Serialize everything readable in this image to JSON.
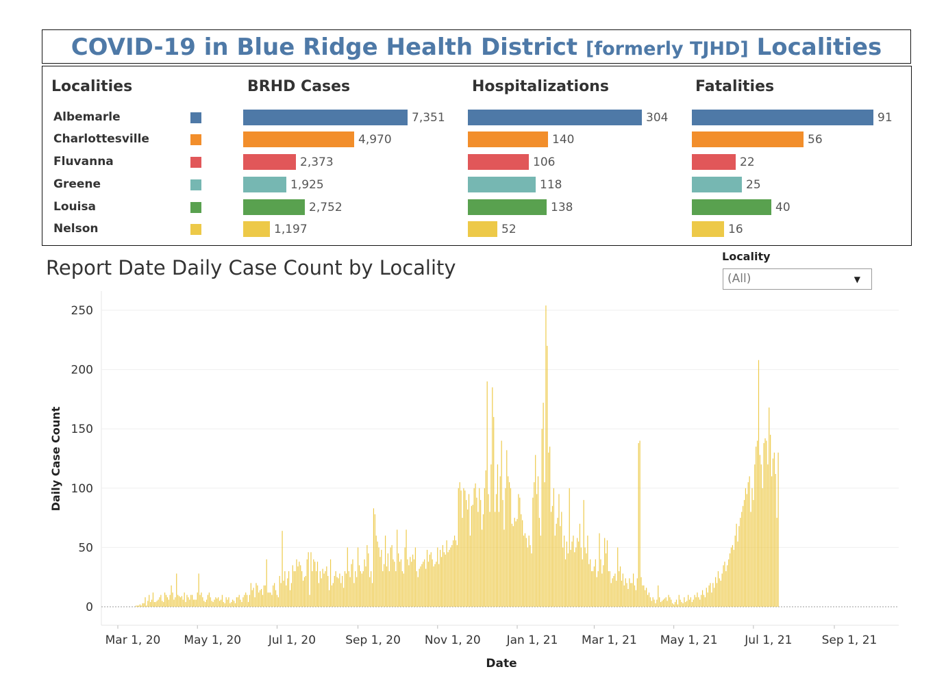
{
  "title": {
    "part1": "COVID-19 in Blue Ridge Health District ",
    "part2": "[formerly TJHD]",
    "part3": " Localities"
  },
  "summary": {
    "columns": {
      "localities": "Localities",
      "cases": "BRHD Cases",
      "hospitalizations": "Hospitalizations",
      "fatalities": "Fatalities"
    },
    "rows": [
      {
        "name": "Albemarle",
        "color": "#4e79a7",
        "cases": 7351,
        "cases_label": "7,351",
        "hosp": 304,
        "hosp_label": "304",
        "fatal": 91,
        "fatal_label": "91"
      },
      {
        "name": "Charlottesville",
        "color": "#f28e2b",
        "cases": 4970,
        "cases_label": "4,970",
        "hosp": 140,
        "hosp_label": "140",
        "fatal": 56,
        "fatal_label": "56"
      },
      {
        "name": "Fluvanna",
        "color": "#e15759",
        "cases": 2373,
        "cases_label": "2,373",
        "hosp": 106,
        "hosp_label": "106",
        "fatal": 22,
        "fatal_label": "22"
      },
      {
        "name": "Greene",
        "color": "#76b7b2",
        "cases": 1925,
        "cases_label": "1,925",
        "hosp": 118,
        "hosp_label": "118",
        "fatal": 25,
        "fatal_label": "25"
      },
      {
        "name": "Louisa",
        "color": "#59a14f",
        "cases": 2752,
        "cases_label": "2,752",
        "hosp": 138,
        "hosp_label": "138",
        "fatal": 40,
        "fatal_label": "40"
      },
      {
        "name": "Nelson",
        "color": "#edc948",
        "cases": 1197,
        "cases_label": "1,197",
        "hosp": 52,
        "hosp_label": "52",
        "fatal": 16,
        "fatal_label": "16"
      }
    ]
  },
  "daily": {
    "title": "Report Date Daily Case Count by Locality",
    "filter_label": "Locality",
    "filter_value": "(All)",
    "filter_arrow": "▼"
  },
  "chart_data": {
    "type": "bar",
    "color": "#edc948",
    "xlabel": "Date",
    "ylabel": "Daily Case Count",
    "ylim": [
      0,
      250
    ],
    "yticks": [
      0,
      50,
      100,
      150,
      200,
      250
    ],
    "xticks": [
      "Mar 1, 20",
      "May 1, 20",
      "Jul 1, 20",
      "Sep 1, 20",
      "Nov 1, 20",
      "Jan 1, 21",
      "Mar 1, 21",
      "May 1, 21",
      "Jul 1, 21",
      "Sep 1, 21"
    ],
    "grid": true,
    "series": [
      {
        "x_start": "2020-03-15",
        "values": [
          1,
          1,
          1,
          2,
          1,
          3,
          3,
          8,
          1,
          5,
          10,
          4,
          6,
          12,
          4,
          4,
          5,
          6,
          8,
          10,
          5,
          4,
          12,
          10,
          8,
          6,
          10,
          18,
          12,
          6,
          8,
          28,
          10,
          9,
          8,
          9,
          6,
          12,
          4,
          10,
          8,
          6,
          10,
          10,
          6,
          6,
          6,
          12,
          28,
          10,
          12,
          8,
          5,
          4,
          6,
          10,
          12,
          8,
          5,
          4,
          6,
          8,
          7,
          8,
          5,
          6,
          10,
          4,
          3,
          8,
          6,
          8,
          3,
          4,
          6,
          5,
          3,
          8,
          8,
          10,
          6,
          4,
          8,
          10,
          12,
          10,
          4,
          10,
          20,
          14,
          16,
          8,
          20,
          18,
          12,
          14,
          15,
          10,
          18,
          18,
          40,
          12,
          12,
          12,
          10,
          18,
          20,
          14,
          10,
          8,
          26,
          20,
          64,
          22,
          30,
          18,
          24,
          30,
          14,
          20,
          35,
          30,
          30,
          40,
          34,
          38,
          35,
          30,
          22,
          25,
          26,
          40,
          46,
          10,
          46,
          30,
          40,
          38,
          30,
          38,
          20,
          30,
          24,
          32,
          28,
          30,
          34,
          26,
          14,
          40,
          18,
          20,
          26,
          30,
          25,
          24,
          28,
          20,
          26,
          16,
          30,
          28,
          50,
          30,
          25,
          36,
          40,
          20,
          30,
          25,
          50,
          35,
          30,
          28,
          30,
          40,
          34,
          52,
          45,
          25,
          30,
          20,
          83,
          78,
          60,
          55,
          50,
          42,
          48,
          30,
          36,
          60,
          34,
          45,
          30,
          50,
          52,
          40,
          38,
          30,
          65,
          45,
          38,
          40,
          30,
          28,
          50,
          65,
          40,
          35,
          42,
          38,
          44,
          40,
          50,
          30,
          25,
          32,
          34,
          36,
          38,
          40,
          32,
          48,
          38,
          44,
          46,
          40,
          34,
          36,
          38,
          50,
          36,
          48,
          42,
          52,
          46,
          44,
          56,
          46,
          48,
          50,
          52,
          56,
          60,
          56,
          52,
          100,
          105,
          98,
          75,
          100,
          98,
          90,
          82,
          95,
          60,
          85,
          86,
          100,
          104,
          92,
          80,
          100,
          90,
          65,
          78,
          100,
          115,
          190,
          95,
          80,
          120,
          185,
          160,
          80,
          95,
          120,
          80,
          110,
          140,
          90,
          65,
          100,
          132,
          110,
          105,
          100,
          70,
          68,
          75,
          72,
          74,
          95,
          92,
          78,
          73,
          60,
          62,
          58,
          50,
          60,
          52,
          45,
          92,
          105,
          128,
          95,
          110,
          75,
          60,
          150,
          172,
          105,
          254,
          220,
          130,
          135,
          80,
          85,
          100,
          60,
          70,
          75,
          95,
          68,
          80,
          50,
          60,
          40,
          55,
          45,
          100,
          48,
          55,
          60,
          46,
          50,
          58,
          55,
          70,
          50,
          40,
          90,
          50,
          45,
          60,
          36,
          40,
          30,
          30,
          34,
          40,
          25,
          30,
          62,
          40,
          28,
          35,
          58,
          45,
          56,
          30,
          30,
          20,
          24,
          26,
          28,
          22,
          50,
          30,
          34,
          22,
          28,
          18,
          24,
          20,
          15,
          24,
          20,
          20,
          28,
          18,
          14,
          24,
          138,
          140,
          25,
          18,
          18,
          14,
          16,
          10,
          12,
          8,
          5,
          8,
          6,
          3,
          6,
          18,
          8,
          4,
          5,
          6,
          7,
          8,
          5,
          10,
          8,
          6,
          3,
          2,
          4,
          6,
          2,
          10,
          6,
          4,
          3,
          8,
          4,
          5,
          10,
          6,
          8,
          4,
          6,
          10,
          8,
          12,
          8,
          6,
          10,
          14,
          10,
          8,
          16,
          12,
          18,
          20,
          12,
          20,
          16,
          25,
          20,
          30,
          24,
          22,
          28,
          35,
          38,
          30,
          35,
          40,
          45,
          50,
          52,
          48,
          60,
          70,
          55,
          68,
          75,
          80,
          85,
          90,
          100,
          95,
          105,
          110,
          80,
          100,
          90,
          120,
          135,
          140,
          208,
          128,
          120,
          100,
          138,
          142,
          140,
          120,
          168,
          145,
          110,
          125,
          130,
          112,
          75,
          130
        ]
      }
    ]
  }
}
